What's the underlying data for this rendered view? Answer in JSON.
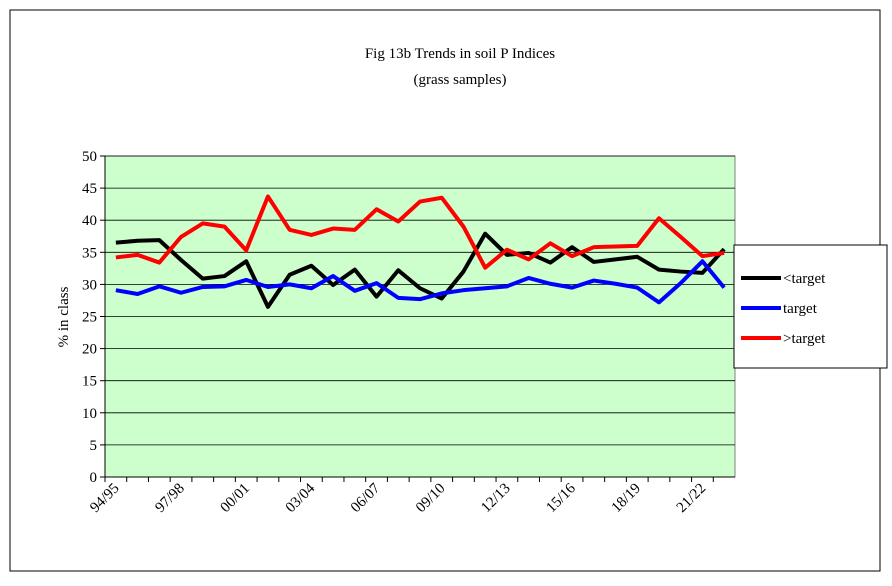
{
  "chart_data": {
    "type": "line",
    "title": "Fig 13b Trends in soil P Indices",
    "subtitle": "(grass samples)",
    "y_label": "% in class",
    "categories": [
      "94/95",
      null,
      null,
      "97/98",
      null,
      null,
      "00/01",
      null,
      null,
      "03/04",
      null,
      null,
      "06/07",
      null,
      null,
      "09/10",
      null,
      null,
      "12/13",
      null,
      null,
      "15/16",
      null,
      null,
      "18/19",
      null,
      null,
      "21/22",
      null
    ],
    "series": [
      {
        "name": "<target",
        "color": "#000000",
        "values": [
          36.5,
          36.8,
          36.9,
          33.8,
          30.9,
          31.3,
          33.6,
          26.5,
          31.5,
          32.9,
          29.9,
          32.3,
          28.1,
          32.2,
          29.4,
          27.8,
          32.0,
          37.9,
          34.6,
          34.9,
          33.4,
          35.8,
          33.5,
          33.9,
          34.3,
          32.3,
          32.0,
          31.8,
          35.5
        ]
      },
      {
        "name": "target",
        "color": "#0000ff",
        "values": [
          29.1,
          28.5,
          29.7,
          28.7,
          29.6,
          29.7,
          30.7,
          29.6,
          30.0,
          29.4,
          31.3,
          29.0,
          30.2,
          27.9,
          27.7,
          28.6,
          29.1,
          29.4,
          29.7,
          31.0,
          30.1,
          29.5,
          30.6,
          30.1,
          29.5,
          27.2,
          30.2,
          33.6,
          29.5
        ]
      },
      {
        "name": ">target",
        "color": "#ff0000",
        "values": [
          34.2,
          34.6,
          33.4,
          37.4,
          39.5,
          39.0,
          35.3,
          43.7,
          38.5,
          37.7,
          38.7,
          38.5,
          41.7,
          39.8,
          42.9,
          43.5,
          39.0,
          32.6,
          35.4,
          33.9,
          36.4,
          34.4,
          35.8,
          35.9,
          36.0,
          40.3,
          37.4,
          34.4,
          34.9
        ]
      }
    ],
    "ylim": [
      0,
      50
    ],
    "yticks": [
      0,
      5,
      10,
      15,
      20,
      25,
      30,
      35,
      40,
      45,
      50
    ],
    "grid": true,
    "plot_background": "#ccffcc",
    "legend": "right"
  }
}
